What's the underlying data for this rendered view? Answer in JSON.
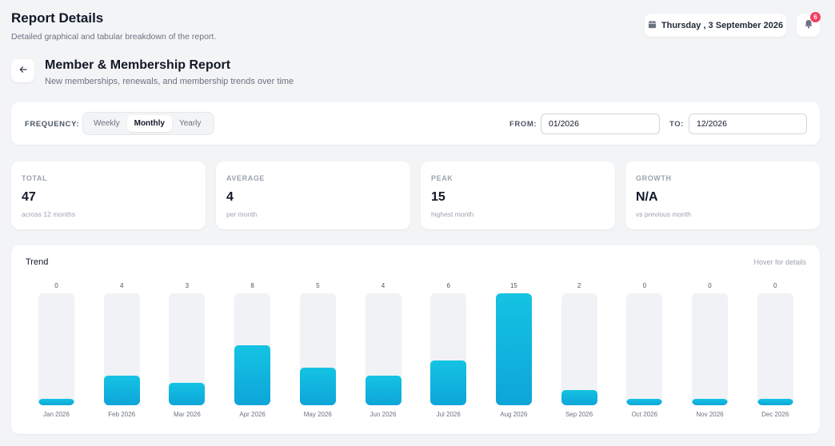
{
  "header": {
    "title": "Report Details",
    "subtitle": "Detailed graphical and tabular breakdown of the report.",
    "date": "Thursday , 3 September 2026",
    "notification_count": "6"
  },
  "report": {
    "title": "Member & Membership Report",
    "subtitle": "New memberships, renewals, and membership trends over time"
  },
  "filters": {
    "frequency_label": "FREQUENCY:",
    "frequency_options": [
      "Weekly",
      "Monthly",
      "Yearly"
    ],
    "frequency_selected": "Monthly",
    "from_label": "FROM:",
    "from_value": "01/2026",
    "to_label": "TO:",
    "to_value": "12/2026"
  },
  "stats": [
    {
      "label": "TOTAL",
      "value": "47",
      "sub": "across 12 months"
    },
    {
      "label": "AVERAGE",
      "value": "4",
      "sub": "per month"
    },
    {
      "label": "PEAK",
      "value": "15",
      "sub": "highest month"
    },
    {
      "label": "GROWTH",
      "value": "N/A",
      "sub": "vs previous month"
    }
  ],
  "trend": {
    "title": "Trend",
    "hint": "Hover for details"
  },
  "chart_data": {
    "type": "bar",
    "title": "Trend",
    "categories": [
      "Jan 2026",
      "Feb 2026",
      "Mar 2026",
      "Apr 2026",
      "May 2026",
      "Jun 2026",
      "Jul 2026",
      "Aug 2026",
      "Sep 2026",
      "Oct 2026",
      "Nov 2026",
      "Dec 2026"
    ],
    "values": [
      0,
      4,
      3,
      8,
      5,
      4,
      6,
      15,
      2,
      0,
      0,
      0
    ],
    "ylim": [
      0,
      15
    ],
    "grid": false,
    "colors": {
      "bar": "#14c3e3",
      "track": "#f1f2f5"
    }
  }
}
